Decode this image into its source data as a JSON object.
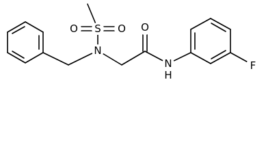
{
  "atoms": [
    "S",
    "O",
    "O",
    "N",
    "O",
    "N",
    "H",
    "F"
  ]
}
